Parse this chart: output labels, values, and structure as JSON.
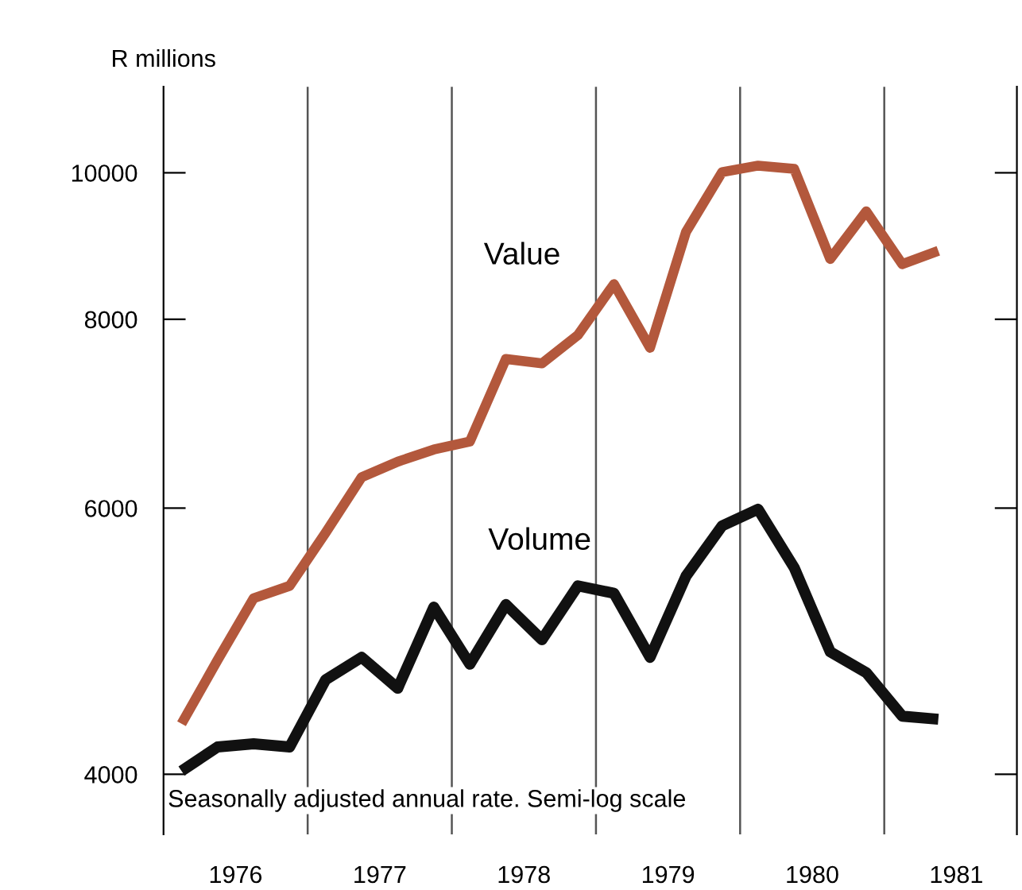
{
  "chart_data": {
    "type": "line",
    "ylabel": "R millions",
    "log": "y",
    "x": [
      1976.125,
      1976.375,
      1976.625,
      1976.875,
      1977.125,
      1977.375,
      1977.625,
      1977.875,
      1978.125,
      1978.375,
      1978.625,
      1978.875,
      1979.125,
      1979.375,
      1979.625,
      1979.875,
      1980.125,
      1980.375,
      1980.625,
      1980.875,
      1981.125,
      1981.375
    ],
    "series": [
      {
        "name": "Value",
        "color": "#b3583c",
        "values": [
          4320,
          4760,
          5230,
          5330,
          5780,
          6290,
          6440,
          6560,
          6640,
          7530,
          7480,
          7810,
          8440,
          7660,
          9140,
          10010,
          10110,
          10060,
          8770,
          9430,
          8700,
          8880
        ]
      },
      {
        "name": "Volume",
        "color": "#111111",
        "values": [
          4020,
          4170,
          4190,
          4170,
          4620,
          4780,
          4560,
          5160,
          4730,
          5180,
          4910,
          5330,
          5270,
          4780,
          5410,
          5840,
          5990,
          5480,
          4820,
          4670,
          4370,
          4350
        ]
      }
    ],
    "xlim": [
      1976,
      1981.92
    ],
    "xticks": [
      {
        "value": 1976.5,
        "label": "1976"
      },
      {
        "value": 1977.5,
        "label": "1977"
      },
      {
        "value": 1978.5,
        "label": "1978"
      },
      {
        "value": 1979.5,
        "label": "1979"
      },
      {
        "value": 1980.5,
        "label": "1980"
      },
      {
        "value": 1981.5,
        "label": "1981"
      }
    ],
    "ylim": [
      3650,
      11400
    ],
    "yticks": [
      4000,
      6000,
      8000,
      10000
    ],
    "ref_lines": [
      {
        "axis": "x",
        "value": 1977,
        "color": "#555555"
      },
      {
        "axis": "x",
        "value": 1978,
        "color": "#555555"
      },
      {
        "axis": "x",
        "value": 1979,
        "color": "#555555"
      },
      {
        "axis": "x",
        "value": 1980,
        "color": "#555555"
      },
      {
        "axis": "x",
        "value": 1981,
        "color": "#555555"
      }
    ],
    "annotations": [
      "Seasonally adjusted annual rate. Semi-log scale"
    ],
    "grid": false,
    "legend": false,
    "marker": "none",
    "line_style": "solid"
  }
}
